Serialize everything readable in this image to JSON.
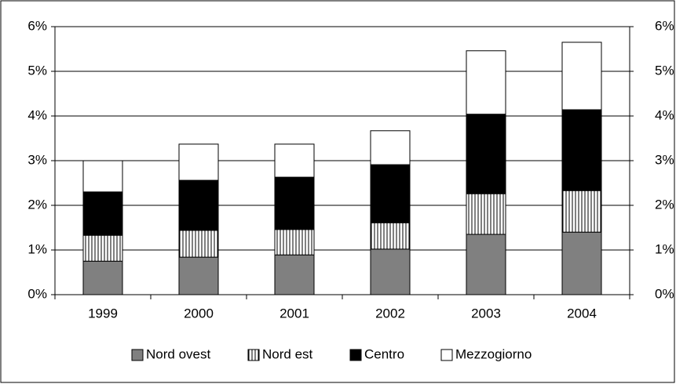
{
  "chart_data": {
    "type": "stacked-bar",
    "categories": [
      "1999",
      "2000",
      "2001",
      "2002",
      "2003",
      "2004"
    ],
    "series": [
      {
        "name": "Nord ovest",
        "color": "#808080",
        "values": [
          0.75,
          0.84,
          0.89,
          1.02,
          1.35,
          1.4
        ]
      },
      {
        "name": "Nord est",
        "color": "#ffffff",
        "pattern": "vertical-lines",
        "values": [
          0.58,
          0.6,
          0.57,
          0.59,
          0.91,
          0.93
        ]
      },
      {
        "name": "Centro",
        "color": "#000000",
        "values": [
          0.97,
          1.12,
          1.17,
          1.3,
          1.78,
          1.81
        ]
      },
      {
        "name": "Mezzogiorno",
        "color": "#ffffff",
        "values": [
          0.7,
          0.81,
          0.74,
          0.76,
          1.42,
          1.51
        ]
      }
    ],
    "ylim": [
      0,
      6
    ],
    "yticks": [
      {
        "value": 0,
        "label": "0%"
      },
      {
        "value": 1,
        "label": "1%"
      },
      {
        "value": 2,
        "label": "2%"
      },
      {
        "value": 3,
        "label": "3%"
      },
      {
        "value": 4,
        "label": "4%"
      },
      {
        "value": 5,
        "label": "5%"
      },
      {
        "value": 6,
        "label": "6%"
      }
    ],
    "y2lim": [
      0,
      6
    ],
    "y2ticks": [
      {
        "value": 0,
        "label": "0%"
      },
      {
        "value": 1,
        "label": "1%"
      },
      {
        "value": 2,
        "label": "2%"
      },
      {
        "value": 3,
        "label": "3%"
      },
      {
        "value": 4,
        "label": "4%"
      },
      {
        "value": 5,
        "label": "5%"
      },
      {
        "value": 6,
        "label": "6%"
      }
    ],
    "grid": true,
    "legend": "bottom"
  }
}
